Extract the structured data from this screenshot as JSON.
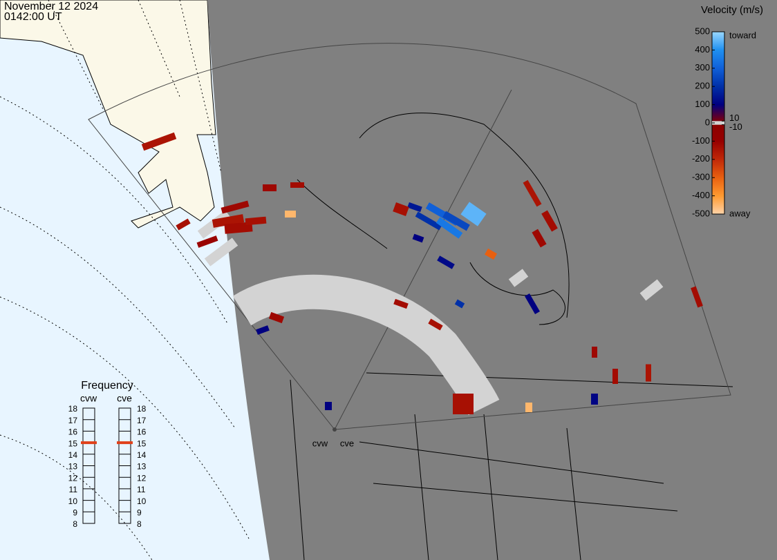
{
  "header": {
    "date": "November 12 2024",
    "time": "0142:00 UT"
  },
  "colorbar": {
    "title": "Velocity (m/s)",
    "ylim": [
      -500,
      500
    ],
    "ticks": [
      500,
      400,
      300,
      200,
      100,
      0,
      -100,
      -200,
      -300,
      -400,
      -500
    ],
    "inner_ticks": [
      10,
      -10
    ],
    "high_label": "toward",
    "low_label": "away",
    "colors": [
      "#ffd3a8",
      "#ff9a30",
      "#e86010",
      "#c02808",
      "#960000",
      "#8b0000",
      "#000080",
      "#0030a8",
      "#1060d8",
      "#2090f0",
      "#9ad8ff"
    ]
  },
  "frequency": {
    "title": "Frequency",
    "ylim": [
      8,
      18
    ],
    "ticks": [
      8,
      9,
      10,
      11,
      12,
      13,
      14,
      15,
      16,
      17,
      18
    ],
    "radars": [
      {
        "name": "cvw",
        "value": 15
      },
      {
        "name": "cve",
        "value": 15
      }
    ]
  },
  "sites": [
    "cvw",
    "cve"
  ],
  "cells": [
    -150,
    -120,
    -150,
    -130,
    -140,
    -120,
    -450,
    -130,
    -110,
    -140,
    300,
    250,
    200,
    350,
    450,
    150,
    100,
    120,
    -300,
    -140,
    -150,
    -130,
    -120,
    100,
    110,
    -120,
    -130,
    -450,
    -450,
    -140,
    -130,
    -150,
    -120,
    100,
    100,
    -130,
    200,
    -140
  ]
}
